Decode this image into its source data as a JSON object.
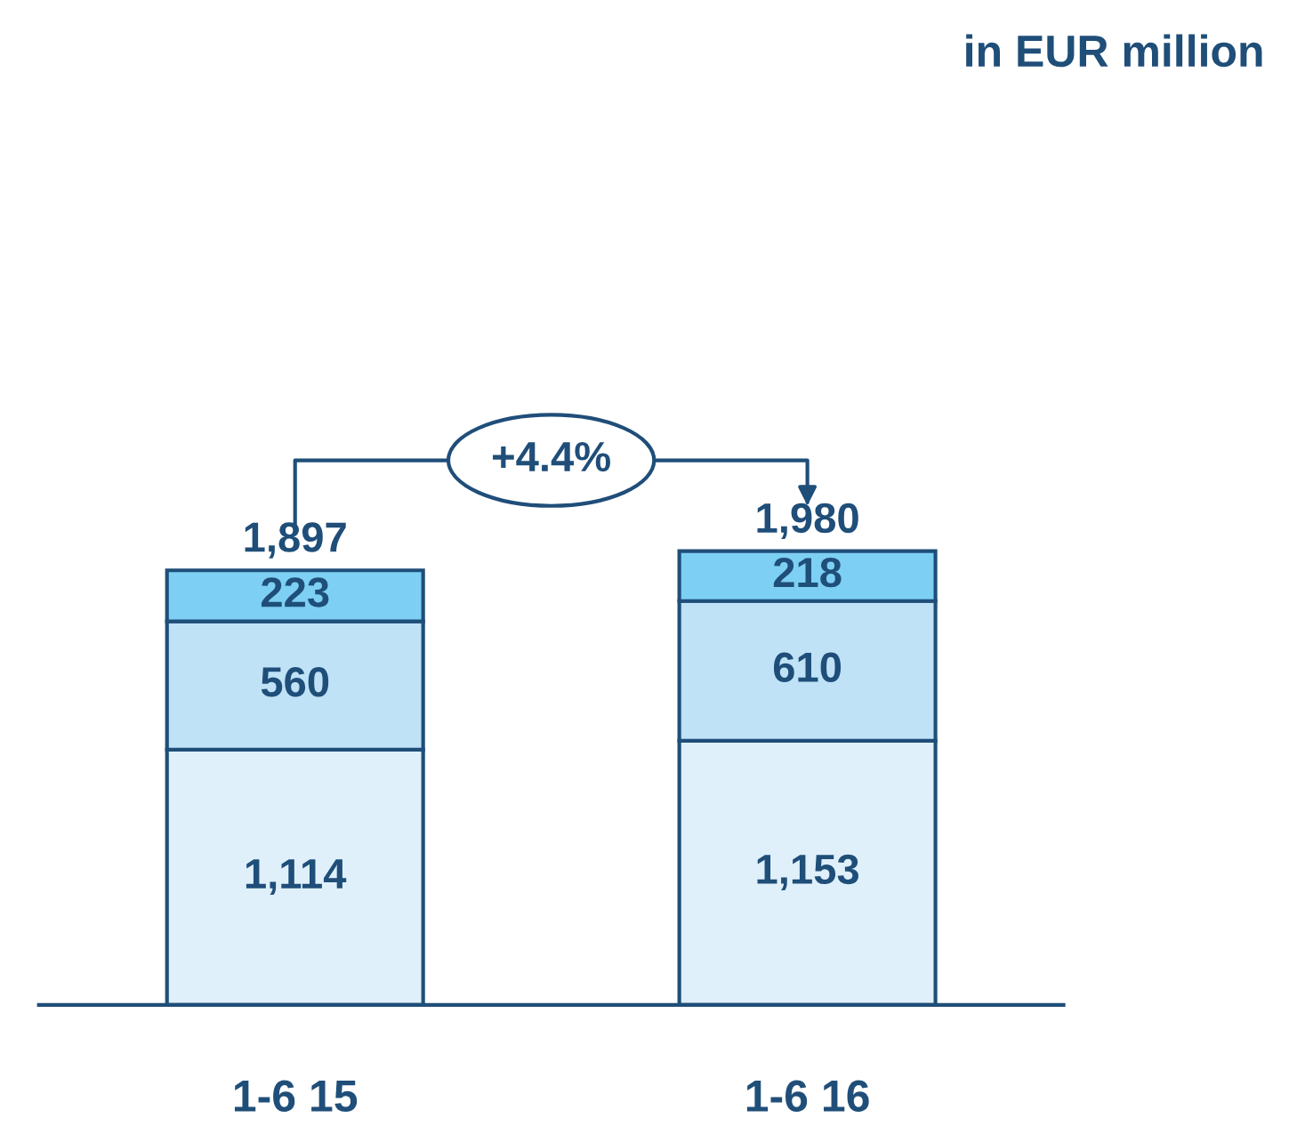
{
  "chart_data": {
    "type": "bar",
    "stacked": true,
    "categories": [
      "1-6 15",
      "1-6 16"
    ],
    "series": [
      {
        "color": "#dff0fb",
        "values": [
          1114,
          1153
        ],
        "value_labels": [
          "1,114",
          "1,153"
        ]
      },
      {
        "color": "#bfe2f7",
        "values": [
          560,
          610
        ],
        "value_labels": [
          "560",
          "610"
        ]
      },
      {
        "color": "#7dd0f3",
        "values": [
          223,
          218
        ],
        "value_labels": [
          "223",
          "218"
        ]
      }
    ],
    "totals": [
      "1,897",
      "1,980"
    ],
    "annotations": [
      "+4.4%",
      "in EUR million"
    ]
  }
}
